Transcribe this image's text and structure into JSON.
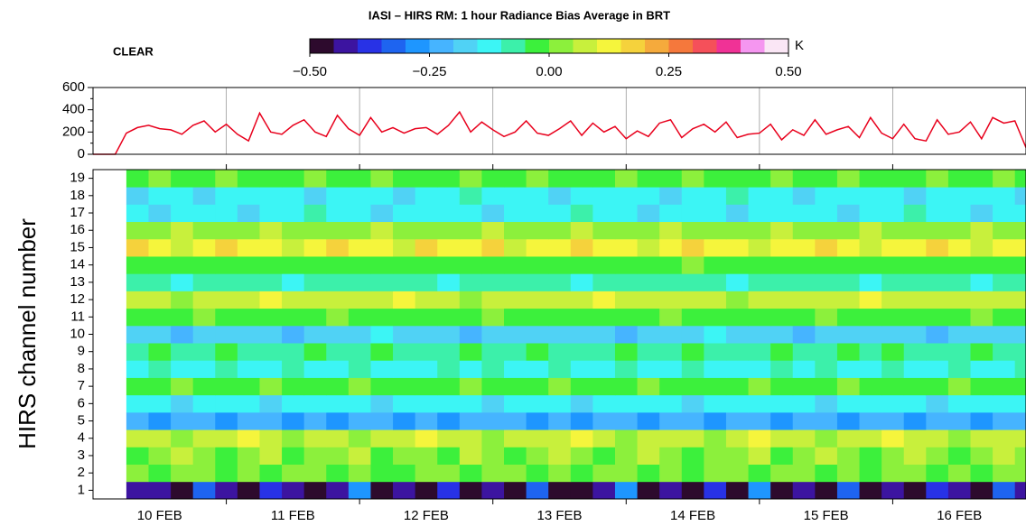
{
  "chart_data": [
    {
      "type": "line",
      "x": [
        0,
        2,
        4,
        6,
        8,
        10,
        12,
        14,
        16,
        18,
        20,
        22,
        24,
        26,
        28,
        30,
        32,
        34,
        36,
        38,
        40,
        42,
        44,
        46,
        48,
        50,
        52,
        54,
        56,
        58,
        60,
        62,
        64,
        66,
        68,
        70,
        72,
        74,
        76,
        78,
        80,
        82,
        84,
        86,
        88,
        90,
        92,
        94,
        96,
        98,
        100,
        102,
        104,
        106,
        108,
        110,
        112,
        114,
        116,
        118,
        120,
        122,
        124,
        126,
        128,
        130,
        132,
        134,
        136,
        138,
        140,
        142,
        144,
        146,
        148,
        150,
        152,
        154,
        156,
        158,
        160,
        162,
        164,
        166,
        168
      ],
      "values": [
        0,
        0,
        0,
        190,
        240,
        260,
        230,
        220,
        180,
        260,
        300,
        200,
        270,
        180,
        120,
        370,
        200,
        180,
        260,
        310,
        200,
        160,
        350,
        230,
        170,
        330,
        200,
        240,
        190,
        230,
        240,
        180,
        260,
        380,
        200,
        290,
        220,
        160,
        200,
        300,
        190,
        170,
        230,
        300,
        170,
        280,
        200,
        250,
        140,
        210,
        160,
        280,
        310,
        150,
        230,
        270,
        200,
        290,
        150,
        180,
        190,
        270,
        130,
        220,
        170,
        310,
        180,
        220,
        250,
        150,
        330,
        190,
        140,
        270,
        140,
        120,
        310,
        180,
        200,
        290,
        140,
        330,
        280,
        300,
        60
      ],
      "color": "#e8001c",
      "xlim": [
        0,
        168
      ],
      "ylim": [
        0,
        600
      ],
      "yticks": [
        0,
        200,
        400,
        600
      ],
      "yminor": [
        100,
        300,
        500
      ],
      "xgrid": [
        24,
        48,
        72,
        96,
        120,
        144
      ]
    },
    {
      "type": "heatmap",
      "title": "IASI – HIRS RM: 1 hour Radiance Bias Average in BRT",
      "annotation": "CLEAR",
      "ylabel": "HIRS channel number",
      "colorbar": {
        "unit": "K",
        "clim": [
          -0.5,
          0.5
        ],
        "colors": [
          "#2d0a2d",
          "#3c14a0",
          "#2832e6",
          "#1e64f0",
          "#1e96ff",
          "#46b4ff",
          "#50d2f5",
          "#3cf5f5",
          "#3cf0aa",
          "#3cf03c",
          "#8cf03c",
          "#c8f03c",
          "#f5f53c",
          "#f5d23c",
          "#f5aa3c",
          "#f5783c",
          "#f5505a",
          "#f03296",
          "#f596f0",
          "#fae6f5"
        ],
        "ticks": [
          {
            "value": -0.5,
            "label": "−0.50"
          },
          {
            "value": -0.25,
            "label": "−0.25"
          },
          {
            "value": 0,
            "label": "0.00"
          },
          {
            "value": 0.25,
            "label": "0.25"
          },
          {
            "value": 0.5,
            "label": "0.50"
          }
        ]
      },
      "xlim": [
        0,
        168
      ],
      "xticks": [
        {
          "value": 12,
          "label": "10 FEB"
        },
        {
          "value": 36,
          "label": "11 FEB"
        },
        {
          "value": 60,
          "label": "12 FEB"
        },
        {
          "value": 84,
          "label": "13 FEB"
        },
        {
          "value": 108,
          "label": "14 FEB"
        },
        {
          "value": 132,
          "label": "15 FEB"
        },
        {
          "value": 156,
          "label": "16 FEB"
        }
      ],
      "xtick_marks": [
        24,
        48,
        72,
        96,
        120,
        144
      ],
      "x": [
        6,
        10,
        14,
        18,
        22,
        26,
        30,
        34,
        38,
        42,
        46,
        50,
        54,
        58,
        62,
        66,
        70,
        74,
        78,
        82,
        86,
        90,
        94,
        98,
        102,
        106,
        110,
        114,
        118,
        122,
        126,
        130,
        134,
        138,
        142,
        146,
        150,
        154,
        158,
        162,
        166
      ],
      "channels": [
        1,
        2,
        3,
        4,
        5,
        6,
        7,
        8,
        9,
        10,
        11,
        12,
        13,
        14,
        15,
        16,
        17,
        18,
        19
      ],
      "values": [
        [
          -0.42,
          -0.42,
          -0.47,
          -0.32,
          -0.42,
          -0.47,
          -0.37,
          -0.42,
          -0.47,
          -0.42,
          -0.27,
          -0.47,
          -0.42,
          -0.47,
          -0.37,
          -0.47,
          -0.42,
          -0.47,
          -0.32,
          -0.47,
          -0.47,
          -0.42,
          -0.27,
          -0.47,
          -0.42,
          -0.47,
          -0.37,
          -0.47,
          -0.27,
          -0.47,
          -0.42,
          -0.47,
          -0.32,
          -0.47,
          -0.42,
          -0.47,
          -0.37,
          -0.42,
          -0.47,
          -0.32,
          -0.42
        ],
        [
          0.02,
          -0.02,
          0.02,
          0.02,
          -0.02,
          0.02,
          -0.02,
          0.02,
          0.02,
          -0.02,
          0.02,
          -0.02,
          -0.02,
          0.02,
          0.02,
          -0.02,
          0.02,
          0.02,
          -0.02,
          0.02,
          -0.02,
          0.02,
          0.02,
          -0.02,
          0.02,
          -0.02,
          0.02,
          0.02,
          -0.02,
          0.02,
          0.02,
          -0.02,
          0.02,
          -0.02,
          0.02,
          0.02,
          -0.02,
          0.02,
          -0.02,
          0.02,
          0.02
        ],
        [
          -0.02,
          0.02,
          0.07,
          0.02,
          -0.02,
          0.02,
          0.07,
          -0.02,
          0.02,
          0.02,
          0.07,
          -0.02,
          0.02,
          0.02,
          -0.02,
          0.07,
          0.02,
          -0.02,
          0.02,
          0.07,
          0.02,
          -0.02,
          0.02,
          0.07,
          0.02,
          -0.02,
          0.02,
          0.02,
          0.07,
          -0.02,
          0.02,
          0.07,
          0.02,
          -0.02,
          0.02,
          0.07,
          0.02,
          -0.02,
          0.02,
          0.07,
          0.02
        ],
        [
          0.07,
          0.07,
          0.02,
          0.07,
          0.07,
          0.12,
          0.07,
          0.02,
          0.07,
          0.07,
          0.02,
          0.07,
          0.07,
          0.12,
          0.07,
          0.07,
          0.02,
          0.07,
          0.07,
          0.07,
          0.12,
          0.07,
          0.02,
          0.07,
          0.07,
          0.07,
          0.02,
          0.07,
          0.12,
          0.07,
          0.07,
          0.02,
          0.07,
          0.07,
          0.12,
          0.07,
          0.07,
          0.02,
          0.07,
          0.07,
          0.07
        ],
        [
          -0.22,
          -0.27,
          -0.22,
          -0.22,
          -0.27,
          -0.22,
          -0.22,
          -0.27,
          -0.22,
          -0.27,
          -0.22,
          -0.22,
          -0.27,
          -0.22,
          -0.27,
          -0.22,
          -0.22,
          -0.22,
          -0.27,
          -0.22,
          -0.27,
          -0.22,
          -0.22,
          -0.27,
          -0.22,
          -0.22,
          -0.27,
          -0.22,
          -0.22,
          -0.27,
          -0.22,
          -0.22,
          -0.27,
          -0.22,
          -0.22,
          -0.27,
          -0.22,
          -0.22,
          -0.27,
          -0.22,
          -0.22
        ],
        [
          -0.12,
          -0.12,
          -0.17,
          -0.12,
          -0.12,
          -0.12,
          -0.17,
          -0.12,
          -0.12,
          -0.12,
          -0.12,
          -0.17,
          -0.12,
          -0.12,
          -0.12,
          -0.12,
          -0.17,
          -0.12,
          -0.12,
          -0.12,
          -0.17,
          -0.12,
          -0.12,
          -0.12,
          -0.12,
          -0.17,
          -0.12,
          -0.12,
          -0.12,
          -0.12,
          -0.12,
          -0.17,
          -0.12,
          -0.12,
          -0.12,
          -0.12,
          -0.17,
          -0.12,
          -0.12,
          -0.12,
          -0.12
        ],
        [
          -0.02,
          -0.02,
          0.02,
          -0.02,
          -0.02,
          -0.02,
          0.02,
          -0.02,
          -0.02,
          -0.02,
          0.02,
          -0.02,
          -0.02,
          -0.02,
          -0.02,
          0.02,
          -0.02,
          -0.02,
          -0.02,
          0.02,
          -0.02,
          -0.02,
          -0.02,
          0.02,
          -0.02,
          -0.02,
          -0.02,
          -0.02,
          0.02,
          -0.02,
          -0.02,
          -0.02,
          0.02,
          -0.02,
          -0.02,
          -0.02,
          -0.02,
          0.02,
          -0.02,
          -0.02,
          -0.02
        ],
        [
          -0.12,
          -0.07,
          -0.12,
          -0.12,
          -0.07,
          -0.12,
          -0.12,
          -0.07,
          -0.12,
          -0.12,
          -0.07,
          -0.12,
          -0.12,
          -0.12,
          -0.07,
          -0.12,
          -0.07,
          -0.12,
          -0.12,
          -0.07,
          -0.12,
          -0.12,
          -0.07,
          -0.12,
          -0.12,
          -0.07,
          -0.12,
          -0.12,
          -0.12,
          -0.07,
          -0.12,
          -0.07,
          -0.12,
          -0.12,
          -0.07,
          -0.12,
          -0.12,
          -0.07,
          -0.12,
          -0.12,
          -0.07
        ],
        [
          -0.07,
          -0.02,
          -0.07,
          -0.07,
          -0.02,
          -0.07,
          -0.07,
          -0.07,
          -0.02,
          -0.07,
          -0.07,
          -0.02,
          -0.07,
          -0.07,
          -0.07,
          -0.02,
          -0.07,
          -0.07,
          -0.02,
          -0.07,
          -0.07,
          -0.07,
          -0.02,
          -0.07,
          -0.07,
          -0.02,
          -0.07,
          -0.07,
          -0.07,
          -0.02,
          -0.07,
          -0.07,
          -0.02,
          -0.07,
          -0.02,
          -0.07,
          -0.07,
          -0.07,
          -0.02,
          -0.07,
          -0.07
        ],
        [
          -0.17,
          -0.17,
          -0.22,
          -0.17,
          -0.17,
          -0.17,
          -0.17,
          -0.22,
          -0.17,
          -0.17,
          -0.17,
          -0.12,
          -0.17,
          -0.17,
          -0.17,
          -0.22,
          -0.17,
          -0.17,
          -0.17,
          -0.17,
          -0.17,
          -0.17,
          -0.22,
          -0.17,
          -0.17,
          -0.17,
          -0.12,
          -0.17,
          -0.17,
          -0.17,
          -0.22,
          -0.17,
          -0.17,
          -0.17,
          -0.17,
          -0.17,
          -0.22,
          -0.17,
          -0.17,
          -0.17,
          -0.17
        ],
        [
          -0.02,
          -0.02,
          -0.02,
          0.02,
          -0.02,
          -0.02,
          -0.02,
          -0.02,
          -0.02,
          0.02,
          -0.02,
          -0.02,
          -0.02,
          -0.02,
          -0.02,
          -0.02,
          0.02,
          -0.02,
          -0.02,
          -0.02,
          -0.02,
          -0.02,
          -0.02,
          -0.02,
          0.02,
          -0.02,
          -0.02,
          -0.02,
          -0.02,
          -0.02,
          -0.02,
          0.02,
          -0.02,
          -0.02,
          -0.02,
          -0.02,
          -0.02,
          -0.02,
          0.02,
          -0.02,
          -0.02
        ],
        [
          0.07,
          0.07,
          0.02,
          0.07,
          0.07,
          0.07,
          0.12,
          0.07,
          0.07,
          0.07,
          0.07,
          0.07,
          0.12,
          0.07,
          0.07,
          0.02,
          0.07,
          0.07,
          0.07,
          0.07,
          0.07,
          0.12,
          0.07,
          0.07,
          0.07,
          0.07,
          0.07,
          0.02,
          0.07,
          0.07,
          0.07,
          0.07,
          0.07,
          0.12,
          0.07,
          0.07,
          0.07,
          0.07,
          0.07,
          0.07,
          0.07
        ],
        [
          -0.07,
          -0.07,
          -0.12,
          -0.07,
          -0.07,
          -0.07,
          -0.07,
          -0.12,
          -0.07,
          -0.07,
          -0.07,
          -0.07,
          -0.07,
          -0.07,
          -0.12,
          -0.07,
          -0.07,
          -0.07,
          -0.07,
          -0.07,
          -0.12,
          -0.07,
          -0.07,
          -0.07,
          -0.07,
          -0.07,
          -0.07,
          -0.12,
          -0.07,
          -0.07,
          -0.07,
          -0.07,
          -0.07,
          -0.12,
          -0.07,
          -0.07,
          -0.07,
          -0.07,
          -0.12,
          -0.07,
          -0.07
        ],
        [
          -0.02,
          -0.02,
          -0.02,
          -0.02,
          -0.02,
          -0.02,
          -0.02,
          -0.02,
          -0.02,
          -0.02,
          -0.02,
          -0.02,
          -0.02,
          -0.02,
          -0.02,
          -0.02,
          -0.02,
          -0.02,
          -0.02,
          -0.02,
          -0.02,
          -0.02,
          -0.02,
          -0.02,
          -0.02,
          0.02,
          -0.02,
          -0.02,
          -0.02,
          -0.02,
          -0.02,
          -0.02,
          -0.02,
          -0.02,
          -0.02,
          -0.02,
          -0.02,
          -0.02,
          -0.02,
          -0.02,
          -0.02
        ],
        [
          0.17,
          0.12,
          0.07,
          0.12,
          0.17,
          0.12,
          0.12,
          0.07,
          0.12,
          0.17,
          0.12,
          0.12,
          0.07,
          0.17,
          0.12,
          0.12,
          0.17,
          0.07,
          0.12,
          0.12,
          0.17,
          0.12,
          0.12,
          0.07,
          0.12,
          0.17,
          0.12,
          0.12,
          0.07,
          0.12,
          0.12,
          0.17,
          0.12,
          0.07,
          0.12,
          0.12,
          0.17,
          0.12,
          0.07,
          0.12,
          0.12
        ],
        [
          0.02,
          0.02,
          0.07,
          0.02,
          0.02,
          0.02,
          0.07,
          0.02,
          0.02,
          0.02,
          0.02,
          0.07,
          0.02,
          0.02,
          0.02,
          0.02,
          0.07,
          0.02,
          0.02,
          0.02,
          0.07,
          0.02,
          0.02,
          0.02,
          0.07,
          0.02,
          0.02,
          0.02,
          0.02,
          0.07,
          0.02,
          0.02,
          0.02,
          0.07,
          0.02,
          0.02,
          0.02,
          0.02,
          0.07,
          0.02,
          0.02
        ],
        [
          -0.12,
          -0.17,
          -0.12,
          -0.12,
          -0.12,
          -0.17,
          -0.12,
          -0.12,
          -0.07,
          -0.12,
          -0.12,
          -0.17,
          -0.12,
          -0.12,
          -0.12,
          -0.12,
          -0.17,
          -0.12,
          -0.12,
          -0.12,
          -0.07,
          -0.12,
          -0.12,
          -0.17,
          -0.12,
          -0.12,
          -0.12,
          -0.17,
          -0.12,
          -0.12,
          -0.12,
          -0.12,
          -0.17,
          -0.12,
          -0.12,
          -0.07,
          -0.12,
          -0.12,
          -0.17,
          -0.12,
          -0.12
        ],
        [
          -0.17,
          -0.12,
          -0.12,
          -0.17,
          -0.12,
          -0.12,
          -0.12,
          -0.12,
          -0.17,
          -0.12,
          -0.12,
          -0.12,
          -0.17,
          -0.12,
          -0.12,
          -0.07,
          -0.12,
          -0.12,
          -0.12,
          -0.17,
          -0.12,
          -0.12,
          -0.12,
          -0.12,
          -0.17,
          -0.12,
          -0.12,
          -0.07,
          -0.12,
          -0.12,
          -0.17,
          -0.12,
          -0.12,
          -0.12,
          -0.12,
          -0.17,
          -0.12,
          -0.12,
          -0.12,
          -0.12,
          -0.17
        ],
        [
          -0.02,
          0.02,
          -0.02,
          -0.02,
          0.02,
          -0.02,
          -0.02,
          -0.02,
          0.02,
          -0.02,
          -0.02,
          0.02,
          -0.02,
          -0.02,
          -0.02,
          0.02,
          -0.02,
          -0.02,
          0.02,
          -0.02,
          -0.02,
          -0.02,
          0.02,
          -0.02,
          -0.02,
          0.02,
          -0.02,
          -0.02,
          -0.02,
          0.02,
          -0.02,
          -0.02,
          0.02,
          -0.02,
          -0.02,
          -0.02,
          0.02,
          -0.02,
          -0.02,
          0.02,
          -0.02
        ]
      ]
    }
  ]
}
